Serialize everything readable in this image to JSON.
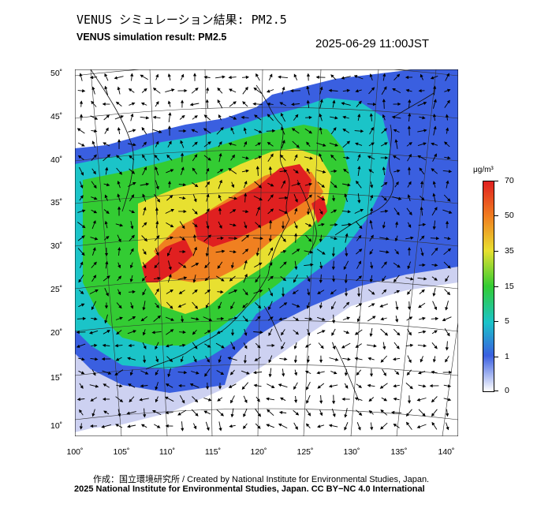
{
  "header": {
    "title_jp": "VENUS シミュレーション結果: PM2.5",
    "title_en": "VENUS simulation result: PM2.5",
    "timestamp": "2025-06-29 11:00JST"
  },
  "map": {
    "lat_labels": [
      "50˚",
      "45˚",
      "40˚",
      "35˚",
      "30˚",
      "25˚",
      "20˚",
      "15˚",
      "10˚"
    ],
    "lon_labels": [
      "100˚",
      "105˚",
      "110˚",
      "115˚",
      "120˚",
      "125˚",
      "130˚",
      "135˚",
      "140˚"
    ],
    "colors": {
      "ocean_low": "#c8ccf0",
      "low": "#3a5fe0",
      "mid": "#1bc4c8",
      "green": "#33cc33",
      "yellow": "#e8e030",
      "orange": "#f08020",
      "red": "#e02020"
    }
  },
  "colorbar": {
    "unit": "μg/m³",
    "ticks": [
      "70",
      "50",
      "35",
      "15",
      "5",
      "1",
      "0"
    ]
  },
  "footer": {
    "credit": "作成：国立環境研究所 / Created by National Institute for Environmental Studies, Japan.",
    "copyright": "2025 National Institute for Environmental Studies, Japan. CC BY−NC 4.0 International"
  }
}
